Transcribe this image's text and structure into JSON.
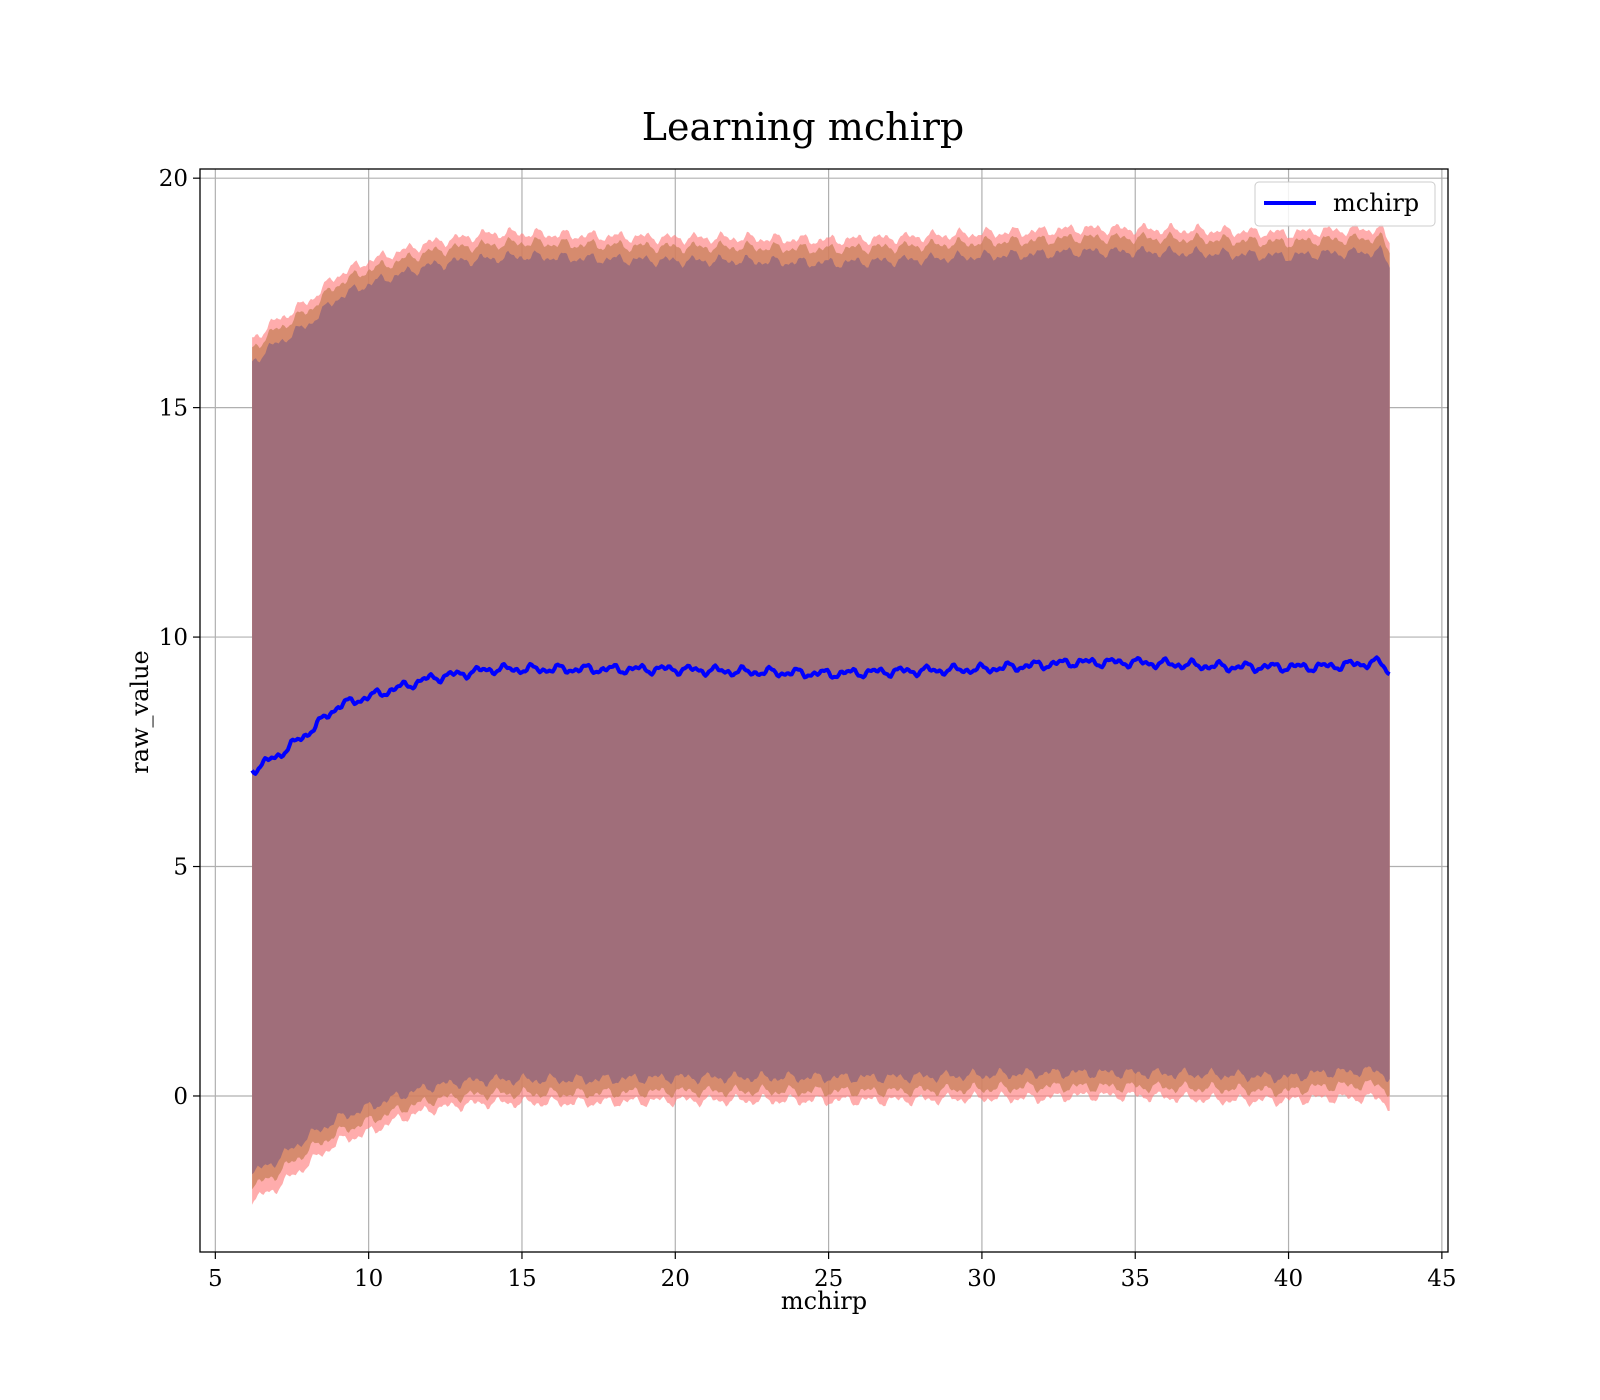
{
  "chart_data": {
    "type": "line",
    "title": "Learning mchirp",
    "xlabel": "mchirp",
    "ylabel": "raw_value",
    "xlim": [
      4.5,
      45.2
    ],
    "ylim": [
      -3.4,
      20.2
    ],
    "xticks": [
      5,
      10,
      15,
      20,
      25,
      30,
      35,
      40,
      45
    ],
    "yticks": [
      0,
      5,
      10,
      15,
      20
    ],
    "grid": true,
    "legend_position": "top-right",
    "series": [
      {
        "name": "mchirp",
        "color": "#0000ff",
        "x": [
          6.2,
          7,
          8,
          9,
          10,
          11,
          12,
          13,
          14,
          15,
          17,
          20,
          22,
          25,
          27,
          30,
          32,
          33,
          35,
          38,
          40,
          41,
          43,
          43.3
        ],
        "y": [
          7.1,
          7.4,
          7.9,
          8.5,
          8.7,
          8.9,
          9.1,
          9.2,
          9.3,
          9.3,
          9.3,
          9.3,
          9.25,
          9.2,
          9.25,
          9.3,
          9.4,
          9.45,
          9.45,
          9.35,
          9.35,
          9.35,
          9.45,
          9.2
        ]
      }
    ],
    "bands": [
      {
        "level": "outer",
        "color": "#ff8080",
        "opacity": 0.65,
        "x": [
          6.2,
          7,
          8,
          9,
          10,
          11,
          12,
          13,
          14,
          15,
          17,
          20,
          22,
          25,
          27,
          30,
          32,
          33,
          35,
          38,
          40,
          41,
          43,
          43.3
        ],
        "upper": [
          16.5,
          16.9,
          17.3,
          17.9,
          18.2,
          18.4,
          18.6,
          18.7,
          18.8,
          18.8,
          18.75,
          18.7,
          18.7,
          18.65,
          18.7,
          18.8,
          18.85,
          18.9,
          18.9,
          18.85,
          18.8,
          18.85,
          18.9,
          18.6
        ],
        "lower": [
          -2.3,
          -2.0,
          -1.5,
          -1.0,
          -0.8,
          -0.5,
          -0.3,
          -0.2,
          -0.15,
          -0.15,
          -0.15,
          -0.1,
          -0.1,
          -0.1,
          -0.1,
          -0.05,
          -0.05,
          0.0,
          0.0,
          -0.1,
          -0.1,
          -0.05,
          -0.05,
          -0.25
        ]
      },
      {
        "level": "middle",
        "color": "#c8805a",
        "opacity": 0.75,
        "x": [
          6.2,
          7,
          8,
          9,
          10,
          11,
          12,
          13,
          14,
          15,
          17,
          20,
          22,
          25,
          27,
          30,
          32,
          33,
          35,
          38,
          40,
          41,
          43,
          43.3
        ],
        "upper": [
          16.3,
          16.7,
          17.1,
          17.7,
          18.0,
          18.2,
          18.4,
          18.5,
          18.55,
          18.6,
          18.55,
          18.5,
          18.5,
          18.45,
          18.5,
          18.6,
          18.65,
          18.7,
          18.7,
          18.65,
          18.6,
          18.65,
          18.7,
          18.4
        ],
        "lower": [
          -2.0,
          -1.7,
          -1.2,
          -0.8,
          -0.55,
          -0.3,
          -0.1,
          0.0,
          0.05,
          0.05,
          0.05,
          0.1,
          0.1,
          0.1,
          0.1,
          0.15,
          0.2,
          0.2,
          0.2,
          0.15,
          0.1,
          0.2,
          0.25,
          0.05
        ]
      },
      {
        "level": "inner",
        "color": "#a06e7a",
        "opacity": 1.0,
        "x": [
          6.2,
          7,
          8,
          9,
          10,
          11,
          12,
          13,
          14,
          15,
          17,
          20,
          22,
          25,
          27,
          30,
          32,
          33,
          35,
          38,
          40,
          41,
          43,
          43.3
        ],
        "upper": [
          16.0,
          16.4,
          16.8,
          17.4,
          17.7,
          17.9,
          18.1,
          18.2,
          18.25,
          18.3,
          18.25,
          18.2,
          18.2,
          18.15,
          18.2,
          18.3,
          18.35,
          18.4,
          18.4,
          18.35,
          18.3,
          18.35,
          18.4,
          18.1
        ],
        "lower": [
          -1.7,
          -1.4,
          -0.9,
          -0.5,
          -0.25,
          0.0,
          0.2,
          0.3,
          0.35,
          0.35,
          0.35,
          0.4,
          0.4,
          0.4,
          0.4,
          0.45,
          0.5,
          0.5,
          0.5,
          0.45,
          0.4,
          0.5,
          0.55,
          0.35
        ]
      }
    ]
  }
}
